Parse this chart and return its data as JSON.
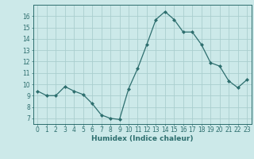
{
  "x": [
    0,
    1,
    2,
    3,
    4,
    5,
    6,
    7,
    8,
    9,
    10,
    11,
    12,
    13,
    14,
    15,
    16,
    17,
    18,
    19,
    20,
    21,
    22,
    23
  ],
  "y": [
    9.4,
    9.0,
    9.0,
    9.8,
    9.4,
    9.1,
    8.3,
    7.3,
    7.0,
    6.9,
    9.6,
    11.4,
    13.5,
    15.7,
    16.4,
    15.7,
    14.6,
    14.6,
    13.5,
    11.9,
    11.6,
    10.3,
    9.7,
    10.4
  ],
  "line_color": "#2d6e6e",
  "marker": "D",
  "markersize": 2.0,
  "linewidth": 0.9,
  "xlabel": "Humidex (Indice chaleur)",
  "xlim": [
    -0.5,
    23.5
  ],
  "ylim": [
    6.5,
    17.0
  ],
  "yticks": [
    7,
    8,
    9,
    10,
    11,
    12,
    13,
    14,
    15,
    16
  ],
  "xticks": [
    0,
    1,
    2,
    3,
    4,
    5,
    6,
    7,
    8,
    9,
    10,
    11,
    12,
    13,
    14,
    15,
    16,
    17,
    18,
    19,
    20,
    21,
    22,
    23
  ],
  "bg_color": "#cce9e9",
  "grid_color": "#aacece",
  "spine_color": "#2d6e6e",
  "label_color": "#2d6e6e",
  "xlabel_fontsize": 6.5,
  "tick_fontsize": 5.5
}
